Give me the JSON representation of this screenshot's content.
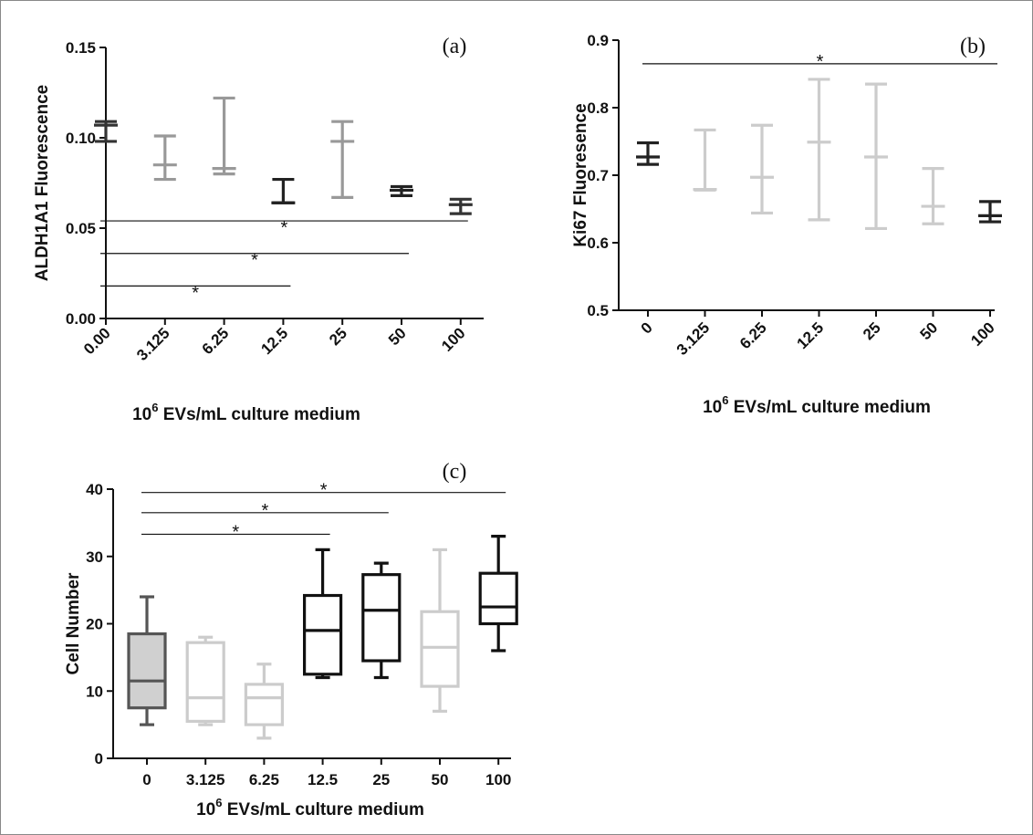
{
  "chart_data": [
    {
      "panel": "(a)",
      "type": "box",
      "categories": [
        "0.00",
        "3.125",
        "6.25",
        "12.5",
        "25",
        "50",
        "100"
      ],
      "ylabel": "ALDH1A1 Fluorescence",
      "xlabel_base": "10",
      "xlabel_sup": "6",
      "xlabel_rest": " EVs/mL culture medium",
      "ylim": [
        0,
        0.15
      ],
      "yticks": [
        "0.00",
        "0.05",
        "0.10",
        "0.15"
      ],
      "series": [
        {
          "min": 0.098,
          "median": 0.107,
          "max": 0.109,
          "color": "#333333"
        },
        {
          "min": 0.077,
          "median": 0.085,
          "max": 0.101,
          "color": "#999999"
        },
        {
          "min": 0.08,
          "median": 0.083,
          "max": 0.122,
          "color": "#999999"
        },
        {
          "min": 0.064,
          "median": 0.064,
          "max": 0.077,
          "color": "#222222"
        },
        {
          "min": 0.067,
          "median": 0.098,
          "max": 0.109,
          "color": "#999999"
        },
        {
          "min": 0.068,
          "median": 0.071,
          "max": 0.073,
          "color": "#222222"
        },
        {
          "min": 0.058,
          "median": 0.063,
          "max": 0.066,
          "color": "#333333"
        }
      ],
      "significance": [
        {
          "from": 0,
          "to": 6,
          "y": 0.054,
          "label": "*"
        },
        {
          "from": 0,
          "to": 5,
          "y": 0.036,
          "label": "*"
        },
        {
          "from": 0,
          "to": 3,
          "y": 0.018,
          "label": "*"
        }
      ]
    },
    {
      "panel": "(b)",
      "type": "box",
      "categories": [
        "0",
        "3.125",
        "6.25",
        "12.5",
        "25",
        "50",
        "100"
      ],
      "ylabel": "Ki67  Fluoresence",
      "xlabel_base": "10",
      "xlabel_sup": "6",
      "xlabel_rest": " EVs/mL culture medium",
      "ylim": [
        0.5,
        0.9
      ],
      "yticks": [
        "0.5",
        "0.6",
        "0.7",
        "0.8",
        "0.9"
      ],
      "series": [
        {
          "min": 0.716,
          "median": 0.727,
          "max": 0.748,
          "color": "#222222"
        },
        {
          "min": 0.678,
          "median": 0.679,
          "max": 0.767,
          "color": "#cccccc"
        },
        {
          "min": 0.644,
          "median": 0.697,
          "max": 0.774,
          "color": "#cccccc"
        },
        {
          "min": 0.634,
          "median": 0.749,
          "max": 0.842,
          "color": "#cccccc"
        },
        {
          "min": 0.621,
          "median": 0.727,
          "max": 0.835,
          "color": "#cccccc"
        },
        {
          "min": 0.628,
          "median": 0.654,
          "max": 0.71,
          "color": "#cccccc"
        },
        {
          "min": 0.631,
          "median": 0.64,
          "max": 0.661,
          "color": "#222222"
        }
      ],
      "significance": [
        {
          "from": 0,
          "to": 6,
          "y": 0.865,
          "label": "*"
        }
      ]
    },
    {
      "panel": "(c)",
      "type": "box",
      "categories": [
        "0",
        "3.125",
        "6.25",
        "12.5",
        "25",
        "50",
        "100"
      ],
      "ylabel": "Cell Number",
      "xlabel_base": "10",
      "xlabel_sup": "6",
      "xlabel_rest": " EVs/mL culture medium",
      "ylim": [
        0,
        40
      ],
      "yticks": [
        "0",
        "10",
        "20",
        "30",
        "40"
      ],
      "series": [
        {
          "min": 5,
          "q1": 7.5,
          "median": 11.5,
          "q3": 18.5,
          "max": 24,
          "color": "#555555",
          "fill": "#d0d0d0"
        },
        {
          "min": 5,
          "q1": 5.5,
          "median": 9,
          "q3": 17.2,
          "max": 18,
          "color": "#cccccc",
          "fill": "none"
        },
        {
          "min": 3,
          "q1": 5,
          "median": 9,
          "q3": 11,
          "max": 14,
          "color": "#cccccc",
          "fill": "none"
        },
        {
          "min": 12,
          "q1": 12.5,
          "median": 19,
          "q3": 24.2,
          "max": 31,
          "color": "#111111",
          "fill": "none"
        },
        {
          "min": 12,
          "q1": 14.5,
          "median": 22,
          "q3": 27.3,
          "max": 29,
          "color": "#111111",
          "fill": "none"
        },
        {
          "min": 7,
          "q1": 10.7,
          "median": 16.5,
          "q3": 21.8,
          "max": 31,
          "color": "#cccccc",
          "fill": "none"
        },
        {
          "min": 16,
          "q1": 20,
          "median": 22.5,
          "q3": 27.5,
          "max": 33,
          "color": "#111111",
          "fill": "none"
        }
      ],
      "significance": [
        {
          "from": 0,
          "to": 6,
          "y": 39.5,
          "label": "*"
        },
        {
          "from": 0,
          "to": 4,
          "y": 36.5,
          "label": "*"
        },
        {
          "from": 0,
          "to": 3,
          "y": 33.3,
          "label": "*"
        }
      ]
    }
  ]
}
